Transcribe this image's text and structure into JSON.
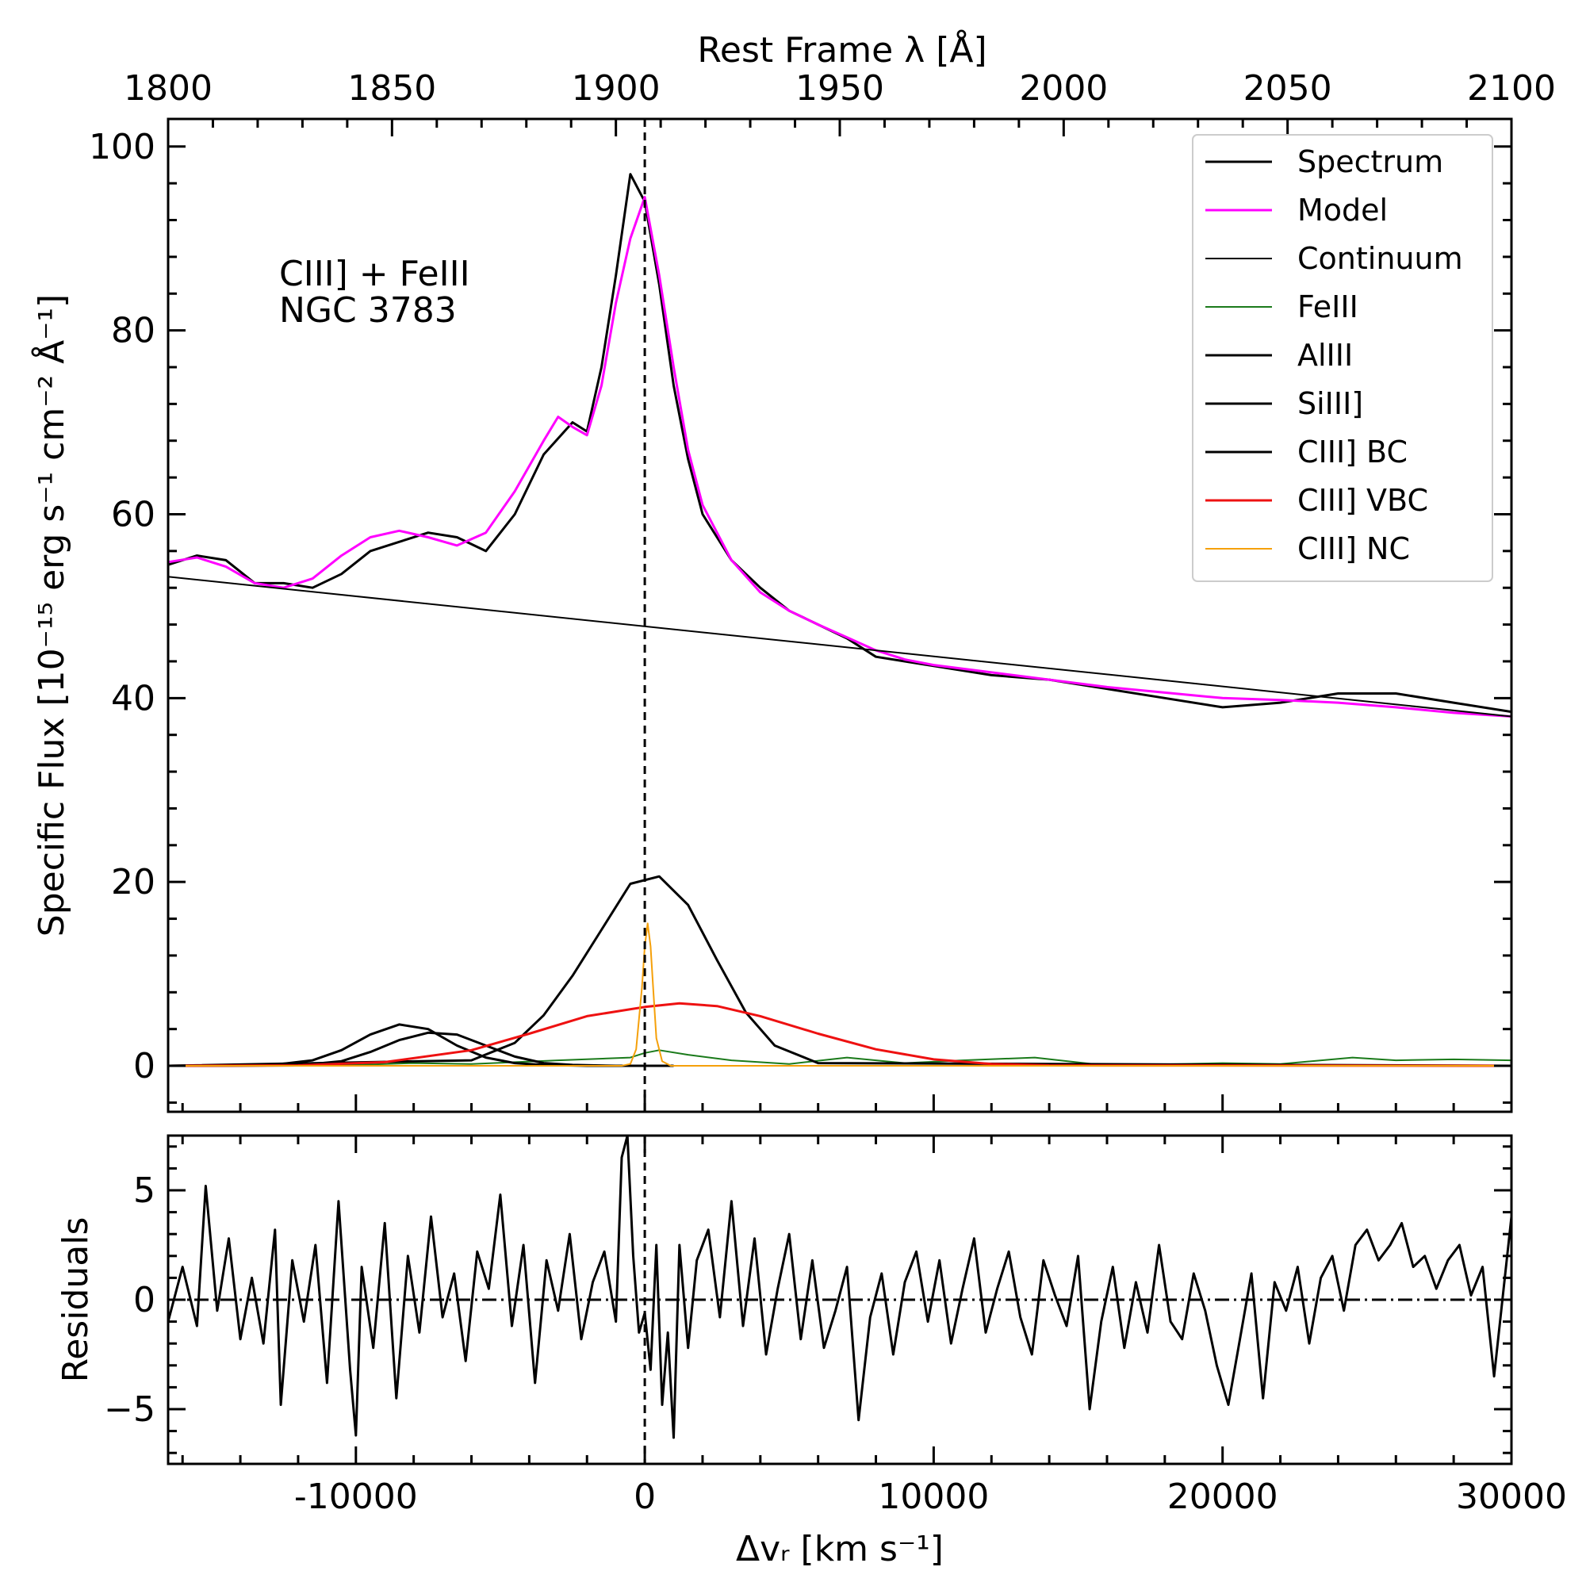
{
  "chart_data": [
    {
      "type": "line",
      "panel": "main",
      "title": "",
      "annotation": [
        "CIII] + FeIII",
        "NGC 3783"
      ],
      "xlabel": "Δvᵣ [km s⁻¹]",
      "ylabel": "Specific Flux [10⁻¹⁵ erg s⁻¹ cm⁻² Å⁻¹]",
      "top_xlabel": "Rest Frame λ [Å]",
      "xlim": [
        -16500,
        30000
      ],
      "ylim": [
        -5,
        103
      ],
      "top_xlim": [
        1800,
        2100
      ],
      "xticks": [
        -10000,
        0,
        10000,
        20000,
        30000
      ],
      "xtick_labels": [
        "-10000",
        "0",
        "10000",
        "20000",
        "30000"
      ],
      "yticks": [
        0,
        20,
        40,
        60,
        80,
        100
      ],
      "ytick_labels": [
        "0",
        "20",
        "40",
        "60",
        "80",
        "100"
      ],
      "top_xticks": [
        1800,
        1850,
        1900,
        1950,
        2000,
        2050,
        2100
      ],
      "top_xtick_labels": [
        "1800",
        "1850",
        "1900",
        "1950",
        "2000",
        "2050",
        "2100"
      ],
      "reference_line_x": 0,
      "legend_position": "top-right",
      "legend": [
        {
          "name": "Spectrum",
          "color": "#000000"
        },
        {
          "name": "Model",
          "color": "#ff00ff"
        },
        {
          "name": "Continuum",
          "color": "#000000"
        },
        {
          "name": "FeIII",
          "color": "#1a7a1a"
        },
        {
          "name": "AlIII",
          "color": "#000000"
        },
        {
          "name": "SiIII]",
          "color": "#000000"
        },
        {
          "name": "CIII] BC",
          "color": "#000000"
        },
        {
          "name": "CIII] VBC",
          "color": "#ee1111"
        },
        {
          "name": "CIII] NC",
          "color": "#f5a00a"
        }
      ],
      "series": [
        {
          "name": "Spectrum",
          "color": "#000000",
          "x": [
            -16500,
            -15500,
            -14500,
            -13500,
            -12500,
            -11500,
            -10500,
            -9500,
            -8500,
            -7500,
            -6500,
            -5500,
            -4500,
            -3500,
            -2500,
            -2000,
            -1500,
            -1000,
            -500,
            0,
            500,
            1000,
            1500,
            2000,
            3000,
            4000,
            5000,
            6000,
            7000,
            8000,
            9000,
            10000,
            12000,
            14000,
            16000,
            18000,
            20000,
            22000,
            24000,
            26000,
            28000,
            30000
          ],
          "y": [
            54.5,
            55.5,
            55,
            52.5,
            52.5,
            52,
            53.5,
            56,
            57,
            58,
            57.5,
            56,
            60,
            66.5,
            70,
            69,
            76,
            86,
            97,
            94,
            85,
            74,
            66,
            60,
            55,
            52,
            49.5,
            48,
            46.5,
            44.5,
            44,
            43.5,
            42.5,
            42,
            41,
            40,
            39,
            39.5,
            40.5,
            40.5,
            39.5,
            38.5
          ]
        },
        {
          "name": "Model",
          "color": "#ff00ff",
          "x": [
            -16500,
            -15500,
            -14500,
            -13500,
            -12500,
            -11500,
            -10500,
            -9500,
            -8500,
            -7500,
            -6500,
            -5500,
            -4500,
            -3500,
            -3000,
            -2500,
            -2000,
            -1500,
            -1000,
            -500,
            0,
            500,
            1000,
            1500,
            2000,
            3000,
            4000,
            5000,
            6000,
            7000,
            8000,
            9000,
            10000,
            12000,
            14000,
            16000,
            18000,
            20000,
            22000,
            24000,
            26000,
            28000,
            30000
          ],
          "y": [
            54.8,
            55.3,
            54.3,
            52.5,
            52.0,
            53.0,
            55.5,
            57.5,
            58.2,
            57.5,
            56.6,
            58.0,
            62.5,
            68.0,
            70.6,
            69.5,
            68.6,
            74,
            83,
            90,
            94.5,
            86,
            76,
            67,
            61,
            55,
            51.5,
            49.5,
            48,
            46.6,
            45.2,
            44.2,
            43.6,
            42.8,
            42.0,
            41.2,
            40.6,
            40.0,
            39.8,
            39.5,
            39.0,
            38.4,
            38.0
          ]
        },
        {
          "name": "Continuum",
          "color": "#000000",
          "x": [
            -16500,
            30000
          ],
          "y": [
            53.2,
            38.0
          ]
        },
        {
          "name": "FeIII",
          "color": "#1a7a1a",
          "x": [
            -16500,
            -10000,
            -8000,
            -6000,
            -3000,
            -500,
            0,
            500,
            1500,
            3000,
            5000,
            7000,
            9000,
            11000,
            13500,
            15500,
            17000,
            20000,
            22000,
            24500,
            26000,
            28000,
            30000
          ],
          "y": [
            0.0,
            0.1,
            0.3,
            0.2,
            0.6,
            0.9,
            1.4,
            1.7,
            1.2,
            0.6,
            0.2,
            0.9,
            0.3,
            0.6,
            0.9,
            0.2,
            0.1,
            0.3,
            0.2,
            0.9,
            0.6,
            0.7,
            0.6
          ]
        },
        {
          "name": "AlIII",
          "color": "#000000",
          "x": [
            -16500,
            -13000,
            -11500,
            -10500,
            -9500,
            -8500,
            -7500,
            -6500,
            -5500,
            -4500,
            -3500,
            -2000,
            0
          ],
          "y": [
            0,
            0.05,
            0.6,
            1.7,
            3.4,
            4.5,
            4.0,
            2.2,
            0.9,
            0.3,
            0.1,
            0,
            0
          ]
        },
        {
          "name": "SiIII]",
          "color": "#000000",
          "x": [
            -16500,
            -12000,
            -10500,
            -9500,
            -8500,
            -7500,
            -6500,
            -5500,
            -4500,
            -3500,
            -2500,
            -1000,
            1000
          ],
          "y": [
            0,
            0.05,
            0.5,
            1.5,
            2.8,
            3.6,
            3.4,
            2.2,
            1.0,
            0.3,
            0.1,
            0,
            0
          ]
        },
        {
          "name": "CIII] BC",
          "color": "#000000",
          "x": [
            -16500,
            -6000,
            -4500,
            -3500,
            -2500,
            -1500,
            -500,
            500,
            1500,
            2500,
            3500,
            4500,
            6000,
            30000
          ],
          "y": [
            0,
            0.6,
            2.5,
            5.5,
            9.8,
            14.8,
            19.8,
            20.6,
            17.5,
            11.5,
            5.8,
            2.2,
            0.3,
            0
          ]
        },
        {
          "name": "CIII] VBC",
          "color": "#ee1111",
          "x": [
            -16500,
            -12000,
            -9000,
            -6000,
            -4000,
            -2000,
            0,
            1200,
            2500,
            4000,
            6000,
            8000,
            10000,
            12000,
            14000,
            30000
          ],
          "y": [
            0,
            0.05,
            0.4,
            1.7,
            3.5,
            5.4,
            6.4,
            6.8,
            6.5,
            5.4,
            3.5,
            1.8,
            0.7,
            0.2,
            0.05,
            0
          ]
        },
        {
          "name": "CIII] NC",
          "color": "#f5a00a",
          "x": [
            -16500,
            -800,
            -500,
            -300,
            -100,
            0,
            100,
            200,
            300,
            400,
            600,
            900,
            30000
          ],
          "y": [
            0,
            0,
            0.2,
            1.8,
            8.5,
            13,
            15.5,
            13,
            8,
            3,
            0.5,
            0,
            0
          ]
        }
      ]
    },
    {
      "type": "line",
      "panel": "residuals",
      "title": "",
      "xlabel": "Δvᵣ [km s⁻¹]",
      "ylabel": "Residuals",
      "xlim": [
        -16500,
        30000
      ],
      "ylim": [
        -7.5,
        7.5
      ],
      "yticks": [
        -5,
        0,
        5
      ],
      "ytick_labels": [
        "−5",
        "0",
        "5"
      ],
      "xticks": [
        -10000,
        0,
        10000,
        20000,
        30000
      ],
      "xtick_labels": [
        "-10000",
        "0",
        "10000",
        "20000",
        "30000"
      ],
      "reference_line_x": 0,
      "zero_line_y": 0,
      "series": [
        {
          "name": "Residuals",
          "color": "#000000",
          "x": [
            -16500,
            -16000,
            -15500,
            -15200,
            -14800,
            -14400,
            -14000,
            -13600,
            -13200,
            -12800,
            -12600,
            -12200,
            -11800,
            -11400,
            -11000,
            -10600,
            -10200,
            -10000,
            -9800,
            -9400,
            -9000,
            -8600,
            -8200,
            -7800,
            -7400,
            -7000,
            -6600,
            -6200,
            -5800,
            -5400,
            -5000,
            -4600,
            -4200,
            -3800,
            -3400,
            -3000,
            -2600,
            -2200,
            -1800,
            -1400,
            -1000,
            -800,
            -600,
            -400,
            -200,
            0,
            200,
            400,
            600,
            800,
            1000,
            1200,
            1500,
            1800,
            2200,
            2600,
            3000,
            3400,
            3800,
            4200,
            4600,
            5000,
            5400,
            5800,
            6200,
            6600,
            7000,
            7400,
            7800,
            8200,
            8600,
            9000,
            9400,
            9800,
            10200,
            10600,
            11000,
            11400,
            11800,
            12200,
            12600,
            13000,
            13400,
            13800,
            14200,
            14600,
            15000,
            15400,
            15800,
            16200,
            16600,
            17000,
            17400,
            17800,
            18200,
            18600,
            19000,
            19400,
            19800,
            20200,
            20600,
            21000,
            21400,
            21800,
            22200,
            22600,
            23000,
            23400,
            23800,
            24200,
            24600,
            25000,
            25400,
            25800,
            26200,
            26600,
            27000,
            27400,
            27800,
            28200,
            28600,
            29000,
            29400,
            30000
          ],
          "y": [
            -1,
            1.5,
            -1.2,
            5.2,
            -0.5,
            2.8,
            -1.8,
            1,
            -2,
            3.2,
            -4.8,
            1.8,
            -1,
            2.5,
            -3.8,
            4.5,
            -3.2,
            -6.2,
            1.5,
            -2.2,
            3.5,
            -4.5,
            2,
            -1.5,
            3.8,
            -0.8,
            1.2,
            -2.8,
            2.2,
            0.5,
            4.8,
            -1.2,
            2.5,
            -3.8,
            1.8,
            -0.5,
            3,
            -1.8,
            0.8,
            2.2,
            -1,
            6.5,
            7.8,
            2,
            -1.5,
            -0.6,
            -3.2,
            2.5,
            -4.8,
            -1.5,
            -6.3,
            2.5,
            -2.2,
            1.8,
            3.2,
            -0.8,
            4.5,
            -1.2,
            2.8,
            -2.5,
            0.5,
            3,
            -1.8,
            1.8,
            -2.2,
            -0.5,
            1.5,
            -5.5,
            -0.8,
            1.2,
            -2.5,
            0.8,
            2.2,
            -1,
            1.8,
            -2,
            0.5,
            2.8,
            -1.5,
            0.5,
            2.2,
            -0.8,
            -2.5,
            1.8,
            0.2,
            -1.2,
            2,
            -5,
            -1,
            1.5,
            -2.2,
            0.8,
            -1.5,
            2.5,
            -1,
            -1.8,
            1.2,
            -0.5,
            -3,
            -4.8,
            -1.8,
            1.2,
            -4.5,
            0.8,
            -0.5,
            1.5,
            -2,
            1,
            2,
            -0.5,
            2.5,
            3.2,
            1.8,
            2.5,
            3.5,
            1.5,
            2,
            0.5,
            1.8,
            2.5,
            0.2,
            1.5,
            -3.5,
            3.8
          ]
        }
      ]
    }
  ]
}
